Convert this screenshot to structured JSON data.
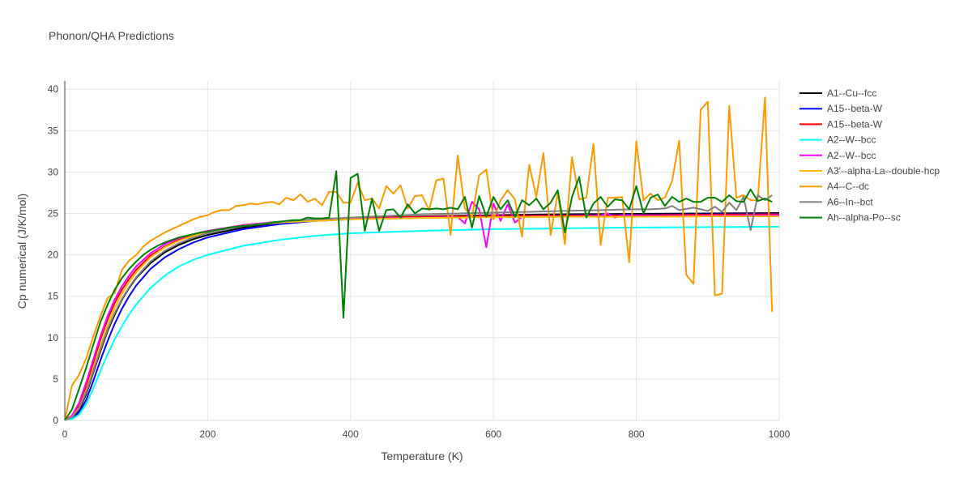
{
  "chart_data": {
    "type": "line",
    "title": "Phonon/QHA Predictions",
    "xlabel": "Temperature (K)",
    "ylabel": "Cp numerical (J/K/mol)",
    "xlim": [
      0,
      1000
    ],
    "ylim": [
      0,
      41
    ],
    "xticks": [
      0,
      200,
      400,
      600,
      800,
      1000
    ],
    "yticks": [
      0,
      5,
      10,
      15,
      20,
      25,
      30,
      35,
      40
    ],
    "grid": true,
    "legend_position": "right",
    "series": [
      {
        "name": "A1--Cu--fcc",
        "color": "#000000",
        "x": [
          0,
          10,
          20,
          30,
          40,
          50,
          60,
          70,
          80,
          90,
          100,
          120,
          140,
          160,
          180,
          200,
          250,
          300,
          350,
          400,
          500,
          600,
          700,
          800,
          900,
          1000
        ],
        "y": [
          0,
          0.3,
          1.2,
          3.2,
          5.8,
          8.4,
          10.8,
          12.8,
          14.6,
          16.0,
          17.2,
          19.0,
          20.3,
          21.2,
          21.9,
          22.4,
          23.3,
          23.9,
          24.2,
          24.4,
          24.65,
          24.8,
          24.9,
          24.95,
          25.0,
          25.05
        ]
      },
      {
        "name": "A15--beta-W",
        "color": "#0000ff",
        "x": [
          0,
          10,
          20,
          30,
          40,
          50,
          60,
          70,
          80,
          90,
          100,
          120,
          140,
          160,
          180,
          200,
          250,
          300,
          350,
          400,
          500,
          600,
          700,
          800,
          900,
          1000
        ],
        "y": [
          0,
          0.2,
          0.9,
          2.5,
          4.8,
          7.3,
          9.6,
          11.7,
          13.5,
          15.0,
          16.3,
          18.3,
          19.7,
          20.7,
          21.5,
          22.1,
          23.1,
          23.7,
          24.1,
          24.3,
          24.55,
          24.7,
          24.8,
          24.85,
          24.9,
          24.95
        ]
      },
      {
        "name": "A15--beta-W",
        "color": "#ff0000",
        "x": [
          0,
          10,
          20,
          30,
          40,
          50,
          60,
          70,
          80,
          90,
          100,
          120,
          140,
          160,
          180,
          200,
          250,
          300,
          350,
          400,
          500,
          600,
          700,
          800,
          900,
          1000
        ],
        "y": [
          0,
          0.5,
          1.8,
          4.2,
          7.0,
          9.8,
          12.2,
          14.2,
          15.8,
          17.1,
          18.2,
          19.9,
          21.0,
          21.8,
          22.4,
          22.8,
          23.6,
          24.0,
          24.25,
          24.4,
          24.6,
          24.7,
          24.75,
          24.8,
          24.85,
          24.9
        ]
      },
      {
        "name": "A2--W--bcc",
        "color": "#00ffff",
        "x": [
          0,
          10,
          20,
          30,
          40,
          50,
          60,
          70,
          80,
          90,
          100,
          120,
          140,
          160,
          180,
          200,
          250,
          300,
          350,
          400,
          500,
          600,
          700,
          800,
          900,
          1000
        ],
        "y": [
          0,
          0.15,
          0.7,
          2.0,
          3.9,
          6.0,
          8.0,
          9.8,
          11.4,
          12.8,
          14.0,
          16.0,
          17.5,
          18.6,
          19.4,
          20.0,
          21.1,
          21.8,
          22.3,
          22.6,
          22.9,
          23.1,
          23.2,
          23.3,
          23.35,
          23.4
        ]
      },
      {
        "name": "A2--W--bcc",
        "color": "#ff00ff",
        "x": [
          0,
          10,
          20,
          30,
          40,
          50,
          60,
          70,
          80,
          90,
          100,
          120,
          140,
          160,
          180,
          200,
          250,
          300,
          350,
          400,
          500,
          550,
          560,
          570,
          580,
          590,
          600,
          610,
          620,
          630,
          640,
          660,
          700,
          750,
          760,
          770,
          780,
          800,
          850,
          900,
          950,
          1000
        ],
        "y": [
          0,
          0.6,
          2.1,
          4.6,
          7.4,
          10.2,
          12.6,
          14.6,
          16.2,
          17.5,
          18.6,
          20.2,
          21.3,
          22.0,
          22.5,
          22.9,
          23.6,
          24.0,
          24.2,
          24.35,
          24.5,
          24.55,
          23.8,
          26.4,
          25.5,
          20.9,
          26.2,
          24.1,
          26.1,
          23.9,
          24.6,
          24.6,
          24.6,
          24.7,
          25.0,
          24.5,
          24.8,
          24.7,
          24.7,
          24.75,
          24.75,
          24.8
        ]
      },
      {
        "name": "A3'--alpha-La--double-hcp",
        "color": "#ffbb00",
        "x": [
          0,
          10,
          20,
          30,
          40,
          50,
          60,
          70,
          80,
          90,
          100,
          120,
          140,
          160,
          180,
          200,
          250,
          300,
          350,
          400,
          500,
          600,
          700,
          800,
          900,
          1000
        ],
        "y": [
          0,
          0.4,
          1.5,
          3.6,
          6.3,
          9.0,
          11.5,
          13.6,
          15.3,
          16.7,
          17.9,
          19.7,
          20.9,
          21.7,
          22.3,
          22.7,
          23.5,
          23.9,
          24.1,
          24.3,
          24.45,
          24.55,
          24.6,
          24.6,
          24.65,
          24.65
        ]
      },
      {
        "name": "A4--C--dc",
        "color": "#ff9900",
        "x": [
          0,
          10,
          20,
          30,
          40,
          50,
          60,
          70,
          80,
          90,
          100,
          110,
          120,
          130,
          140,
          150,
          160,
          170,
          180,
          190,
          200,
          210,
          220,
          230,
          240,
          250,
          260,
          270,
          280,
          290,
          300,
          310,
          320,
          330,
          340,
          350,
          360,
          370,
          380,
          390,
          400,
          410,
          420,
          430,
          440,
          450,
          460,
          470,
          480,
          490,
          500,
          510,
          520,
          530,
          540,
          550,
          560,
          570,
          580,
          590,
          600,
          610,
          620,
          630,
          640,
          650,
          660,
          670,
          680,
          690,
          700,
          710,
          720,
          730,
          740,
          750,
          760,
          770,
          780,
          790,
          800,
          810,
          820,
          830,
          840,
          850,
          860,
          870,
          880,
          890,
          900,
          910,
          920,
          930,
          940,
          950,
          960,
          970,
          980,
          990
        ],
        "y": [
          0,
          4.2,
          5.5,
          7.5,
          10.2,
          12.6,
          14.8,
          15.4,
          18.2,
          19.3,
          20.0,
          21.0,
          21.7,
          22.2,
          22.7,
          23.1,
          23.5,
          23.9,
          24.3,
          24.6,
          24.8,
          25.2,
          25.4,
          25.4,
          25.9,
          26.0,
          26.2,
          26.1,
          26.3,
          26.4,
          26.1,
          26.9,
          26.6,
          27.3,
          26.4,
          26.8,
          26.0,
          27.6,
          27.6,
          26.3,
          26.3,
          28.7,
          26.6,
          26.8,
          25.6,
          28.3,
          27.4,
          28.4,
          25.6,
          27.1,
          27.2,
          25.4,
          29.0,
          29.2,
          22.4,
          32.0,
          25.6,
          24.6,
          29.6,
          30.3,
          24.3,
          26.6,
          27.8,
          26.7,
          22.2,
          30.9,
          27.0,
          32.3,
          22.4,
          27.5,
          21.3,
          31.8,
          26.7,
          26.9,
          33.4,
          21.2,
          26.9,
          26.9,
          27.0,
          19.1,
          33.7,
          26.6,
          27.4,
          26.6,
          26.9,
          28.9,
          33.8,
          17.6,
          16.5,
          37.5,
          38.5,
          15.1,
          15.3,
          38.0,
          26.9,
          27.2,
          26.6,
          26.6,
          39.0,
          13.1
        ]
      },
      {
        "name": "A6--In--bct",
        "color": "#808080",
        "x": [
          0,
          10,
          20,
          30,
          40,
          50,
          60,
          70,
          80,
          90,
          100,
          120,
          140,
          160,
          180,
          200,
          250,
          300,
          350,
          400,
          450,
          500,
          550,
          600,
          650,
          700,
          750,
          800,
          820,
          840,
          850,
          860,
          880,
          900,
          910,
          920,
          930,
          940,
          950,
          960,
          970,
          980,
          990
        ],
        "y": [
          0,
          0.35,
          1.4,
          3.4,
          6.0,
          8.6,
          11.0,
          13.0,
          14.7,
          16.1,
          17.3,
          19.2,
          20.5,
          21.4,
          22.1,
          22.6,
          23.5,
          24.0,
          24.3,
          24.5,
          24.7,
          24.9,
          25.0,
          25.1,
          25.2,
          25.3,
          25.4,
          25.5,
          25.5,
          25.6,
          25.9,
          25.4,
          25.7,
          25.3,
          25.8,
          25.2,
          26.3,
          25.4,
          27.0,
          23.0,
          27.2,
          26.6,
          27.2
        ]
      },
      {
        "name": "Ah--alpha-Po--sc",
        "color": "#008000",
        "x": [
          0,
          10,
          20,
          30,
          40,
          50,
          60,
          70,
          80,
          90,
          100,
          110,
          120,
          130,
          140,
          150,
          160,
          170,
          180,
          190,
          200,
          210,
          220,
          230,
          240,
          250,
          260,
          270,
          280,
          290,
          300,
          310,
          320,
          330,
          340,
          350,
          360,
          370,
          380,
          390,
          400,
          410,
          420,
          430,
          440,
          450,
          460,
          470,
          480,
          490,
          500,
          510,
          520,
          530,
          540,
          550,
          560,
          570,
          580,
          590,
          600,
          610,
          620,
          630,
          640,
          650,
          660,
          670,
          680,
          690,
          700,
          710,
          720,
          730,
          740,
          750,
          760,
          770,
          780,
          790,
          800,
          810,
          820,
          830,
          840,
          850,
          860,
          870,
          880,
          890,
          900,
          910,
          920,
          930,
          940,
          950,
          960,
          970,
          980,
          990
        ],
        "y": [
          0,
          1.3,
          3.8,
          6.4,
          9.2,
          11.9,
          14.0,
          15.8,
          17.2,
          18.3,
          19.2,
          20.0,
          20.6,
          21.1,
          21.5,
          21.8,
          22.1,
          22.3,
          22.5,
          22.7,
          22.8,
          23.0,
          23.1,
          23.3,
          23.4,
          23.5,
          23.5,
          23.7,
          23.7,
          23.9,
          24.0,
          24.1,
          24.2,
          24.2,
          24.5,
          24.4,
          24.4,
          24.5,
          30.1,
          12.4,
          29.3,
          29.8,
          22.9,
          26.8,
          22.9,
          25.4,
          25.5,
          24.5,
          26.1,
          25.0,
          25.6,
          25.5,
          25.6,
          25.5,
          25.7,
          25.5,
          27.0,
          23.3,
          27.1,
          24.6,
          27.0,
          25.5,
          26.6,
          24.6,
          26.6,
          26.0,
          26.8,
          25.5,
          26.3,
          27.8,
          22.7,
          27.0,
          29.4,
          24.5,
          26.2,
          27.0,
          25.8,
          26.7,
          26.6,
          25.5,
          28.3,
          25.0,
          26.9,
          27.3,
          25.9,
          27.0,
          26.4,
          26.8,
          26.4,
          26.4,
          26.9,
          26.9,
          26.4,
          27.2,
          26.5,
          26.4,
          27.9,
          26.5,
          26.8,
          26.4
        ]
      }
    ]
  }
}
